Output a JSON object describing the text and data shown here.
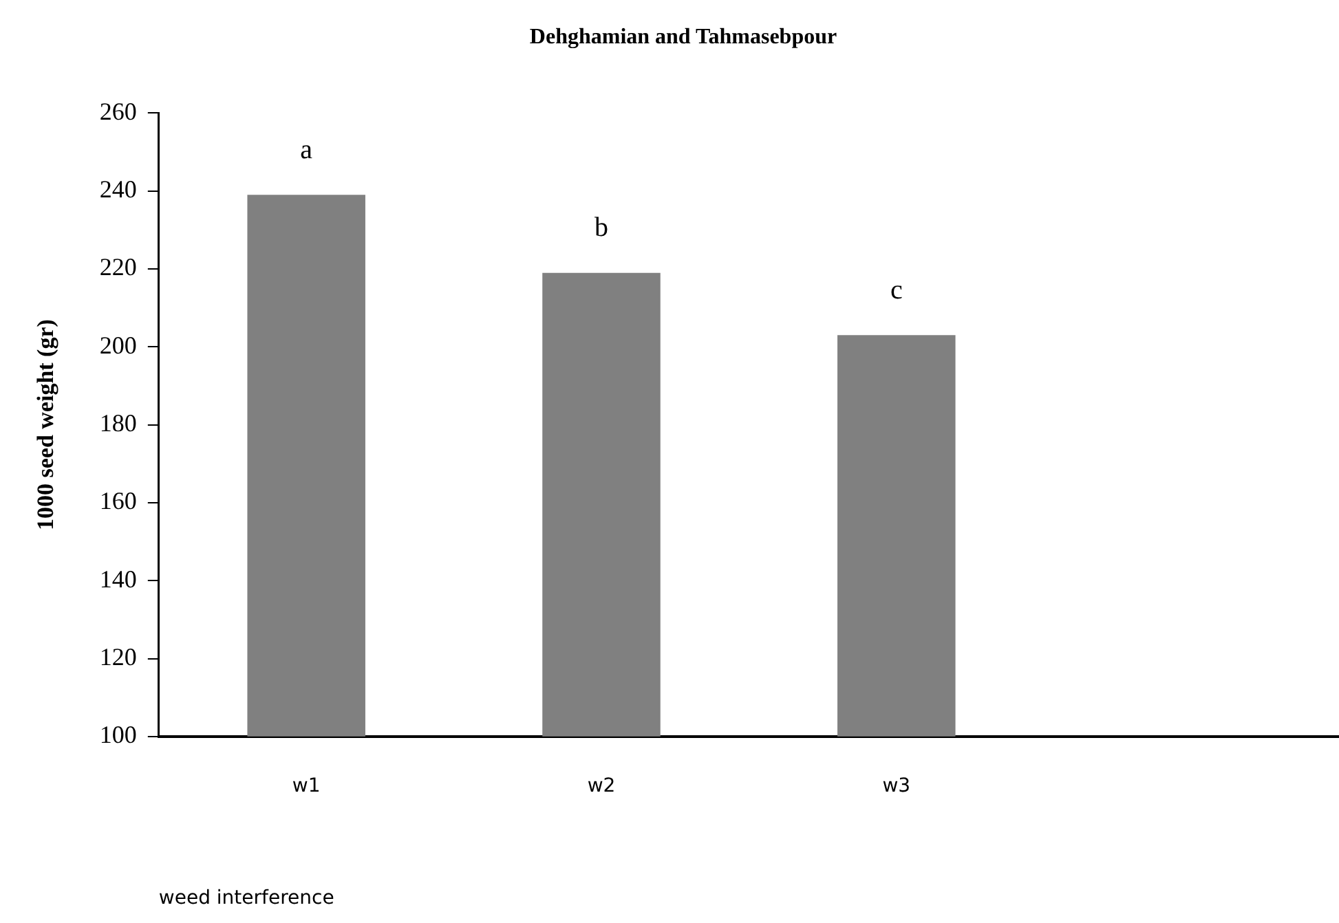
{
  "chart_data": {
    "type": "bar",
    "title": "Dehghamian and Tahmasebpour",
    "xlabel": "weed interference",
    "ylabel": "1000 seed weight (gr)",
    "categories": [
      "w1",
      "w2",
      "w3",
      null
    ],
    "values": [
      239,
      219,
      203,
      null
    ],
    "color": "#808080",
    "ylim": [
      100,
      260
    ],
    "yticks": [
      100,
      120,
      140,
      160,
      180,
      200,
      220,
      240,
      260
    ],
    "grid": false,
    "legend": false,
    "annotations": [
      {
        "text": "a",
        "x": "w1",
        "y": 239
      },
      {
        "text": "b",
        "x": "w2",
        "y": 219
      },
      {
        "text": "c",
        "x": "w3",
        "y": 203
      }
    ]
  }
}
